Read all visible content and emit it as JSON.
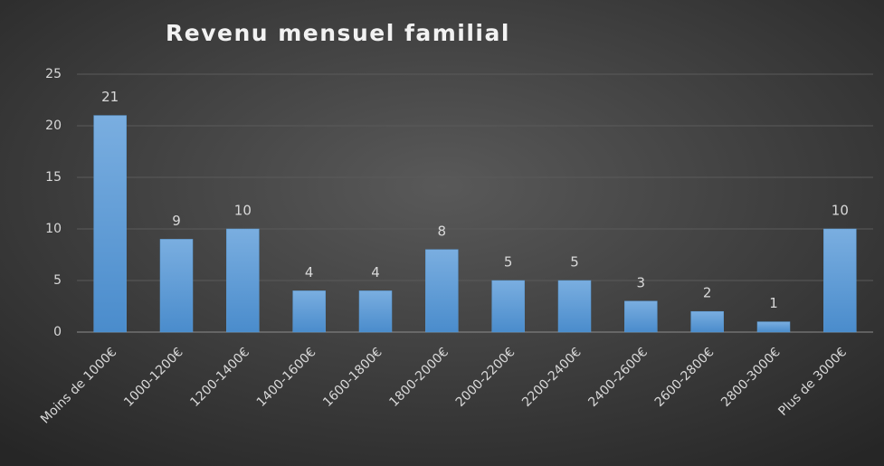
{
  "chart_data": {
    "type": "bar",
    "title": "Revenu mensuel familial",
    "categories": [
      "Moins de 1000€",
      "1000-1200€",
      "1200-1400€",
      "1400-1600€",
      "1600-1800€",
      "1800-2000€",
      "2000-2200€",
      "2200-2400€",
      "2400-2600€",
      "2600-2800€",
      "2800-3000€",
      "Plus de 3000€"
    ],
    "values": [
      21,
      9,
      10,
      4,
      4,
      8,
      5,
      5,
      3,
      2,
      1,
      10
    ],
    "color": "#5b9bd5",
    "ylim": [
      0,
      25
    ],
    "yticks": [
      0,
      5,
      10,
      15,
      20,
      25
    ],
    "grid": true
  }
}
